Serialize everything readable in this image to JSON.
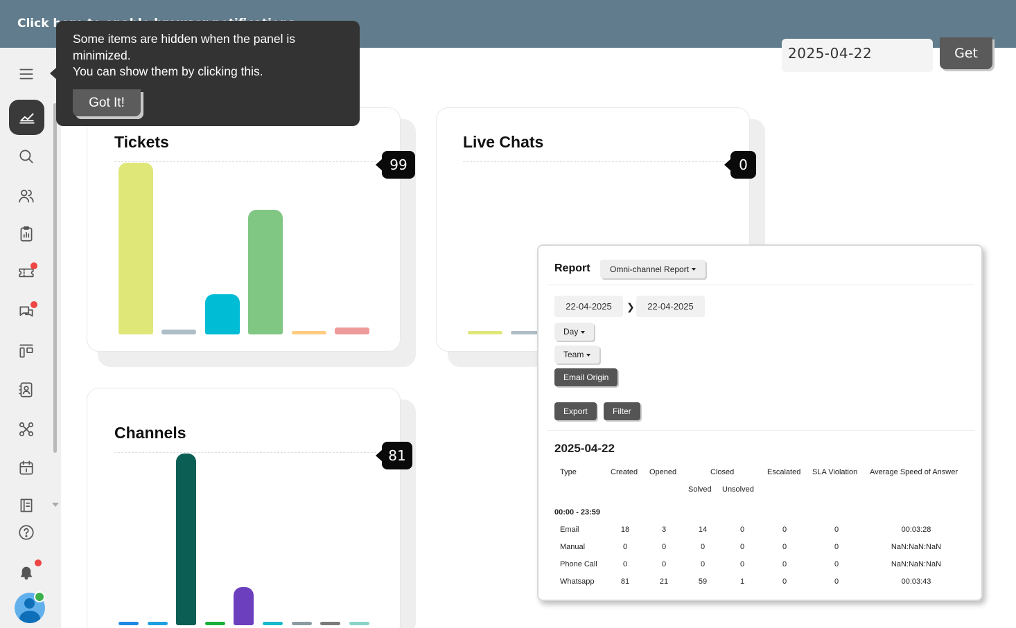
{
  "banner": {
    "text": "Click here to enable browser notifications"
  },
  "tooltip": {
    "line1": "Some items are hidden when the panel is minimized.",
    "line2": "You can show them by clicking this.",
    "button": "Got It!"
  },
  "date_selector": {
    "value": "2025-04-22",
    "button": "Get"
  },
  "sidebar": {
    "items": [
      "menu-icon",
      "dashboard-icon",
      "search-icon",
      "users-icon",
      "clipboard-chart-icon",
      "ticket-icon",
      "chat-icon",
      "kanban-icon",
      "contact-book-icon",
      "network-icon",
      "calendar-icon",
      "knowledge-base-icon",
      "help-icon",
      "bell-icon"
    ],
    "colors": {
      "active_bg": "#3a3a3a",
      "notification_dot": "#f04545",
      "online": "#3cb04a"
    }
  },
  "cards": {
    "tickets": {
      "title": "Tickets",
      "count": "99",
      "chart_data": {
        "type": "bar",
        "values": [
          99,
          3,
          23,
          72,
          1,
          4
        ],
        "ylim": [
          0,
          99
        ],
        "colors": [
          "#dfe779",
          "#aebec7",
          "#00bcd4",
          "#81c784",
          "#ffcc80",
          "#ef9a9a"
        ]
      }
    },
    "live_chats": {
      "title": "Live Chats",
      "count": "0",
      "chart_data": {
        "type": "bar",
        "values": [
          0,
          0
        ],
        "colors": [
          "#dfe779",
          "#aebec7"
        ]
      }
    },
    "channels": {
      "title": "Channels",
      "count": "81",
      "chart_data": {
        "type": "bar",
        "values": [
          1,
          1,
          81,
          1,
          18,
          1,
          1,
          1,
          1
        ],
        "ylim": [
          0,
          81
        ],
        "colors": [
          "#1e88e5",
          "#1fa0e0",
          "#0b5e54",
          "#1ab03a",
          "#6c3fbf",
          "#19b8cc",
          "#8c9aa3",
          "#7a7a7a",
          "#88d4c8"
        ]
      }
    }
  },
  "report": {
    "title": "Report",
    "report_type": "Omni-channel Report",
    "date_from": "22-04-2025",
    "date_to": "22-04-2025",
    "period": "Day",
    "group": "Team",
    "origin_button": "Email Origin",
    "export_button": "Export",
    "filter_button": "Filter",
    "heading": "2025-04-22",
    "columns": [
      "Type",
      "Created",
      "Opened",
      "Closed",
      "Escalated",
      "SLA Violation",
      "Average Speed of Answer"
    ],
    "subcolumns": [
      "Solved",
      "Unsolved"
    ],
    "time_range": "00:00 - 23:59",
    "rows": [
      [
        "Email",
        "18",
        "3",
        "14",
        "0",
        "0",
        "0",
        "00:03:28"
      ],
      [
        "Manual",
        "0",
        "0",
        "0",
        "0",
        "0",
        "0",
        "NaN:NaN:NaN"
      ],
      [
        "Phone Call",
        "0",
        "0",
        "0",
        "0",
        "0",
        "0",
        "NaN:NaN:NaN"
      ],
      [
        "Whatsapp",
        "81",
        "21",
        "59",
        "1",
        "0",
        "0",
        "00:03:43"
      ]
    ]
  }
}
